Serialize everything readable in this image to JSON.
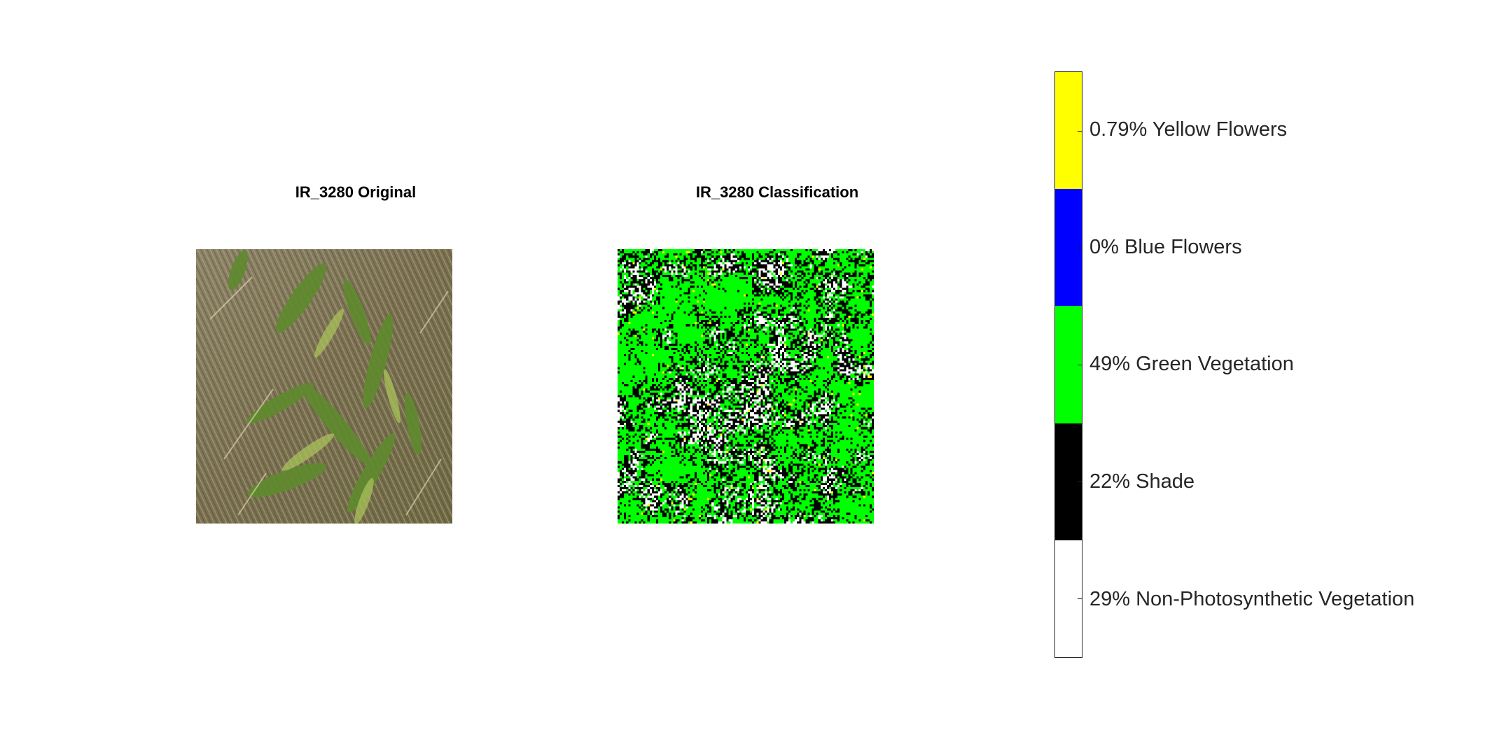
{
  "panels": {
    "original": {
      "title": "IR_3280 Original"
    },
    "classification": {
      "title": "IR_3280 Classification"
    }
  },
  "colorbar": {
    "classes": [
      {
        "label": "0.79% Yellow Flowers",
        "percent": 0.79,
        "color": "#ffff00"
      },
      {
        "label": "0% Blue Flowers",
        "percent": 0,
        "color": "#0000ff"
      },
      {
        "label": "49% Green Vegetation",
        "percent": 49,
        "color": "#00ff00"
      },
      {
        "label": "22% Shade",
        "percent": 22,
        "color": "#000000"
      },
      {
        "label": "29% Non-Photosynthetic Vegetation",
        "percent": 29,
        "color": "#ffffff"
      }
    ]
  }
}
